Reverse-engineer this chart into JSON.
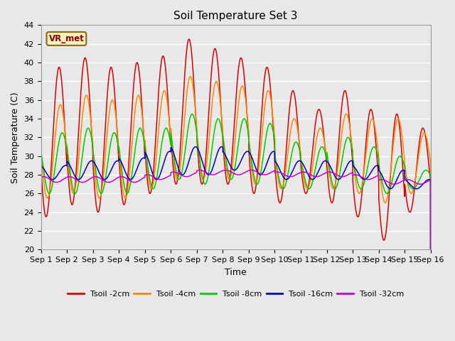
{
  "title": "Soil Temperature Set 3",
  "xlabel": "Time",
  "ylabel": "Soil Temperature (C)",
  "ylim": [
    20,
    44
  ],
  "xlim": [
    0,
    15
  ],
  "x_tick_labels": [
    "Sep 1",
    "Sep 2",
    "Sep 3",
    "Sep 4",
    "Sep 5",
    "Sep 6",
    "Sep 7",
    "Sep 8",
    "Sep 9",
    "Sep 10",
    "Sep 11",
    "Sep 12",
    "Sep 13",
    "Sep 14",
    "Sep 15",
    "Sep 16"
  ],
  "colors": {
    "Tsoil -2cm": "#dd0000",
    "Tsoil -4cm": "#ff8800",
    "Tsoil -8cm": "#00cc00",
    "Tsoil -16cm": "#0000cc",
    "Tsoil -32cm": "#cc00cc"
  },
  "legend_labels": [
    "Tsoil -2cm",
    "Tsoil -4cm",
    "Tsoil -8cm",
    "Tsoil -16cm",
    "Tsoil -32cm"
  ],
  "annotation_text": "VR_met",
  "bg_color": "#e8e8e8",
  "grid_color": "#ffffff",
  "title_fontsize": 11,
  "axis_fontsize": 9,
  "tick_fontsize": 8
}
